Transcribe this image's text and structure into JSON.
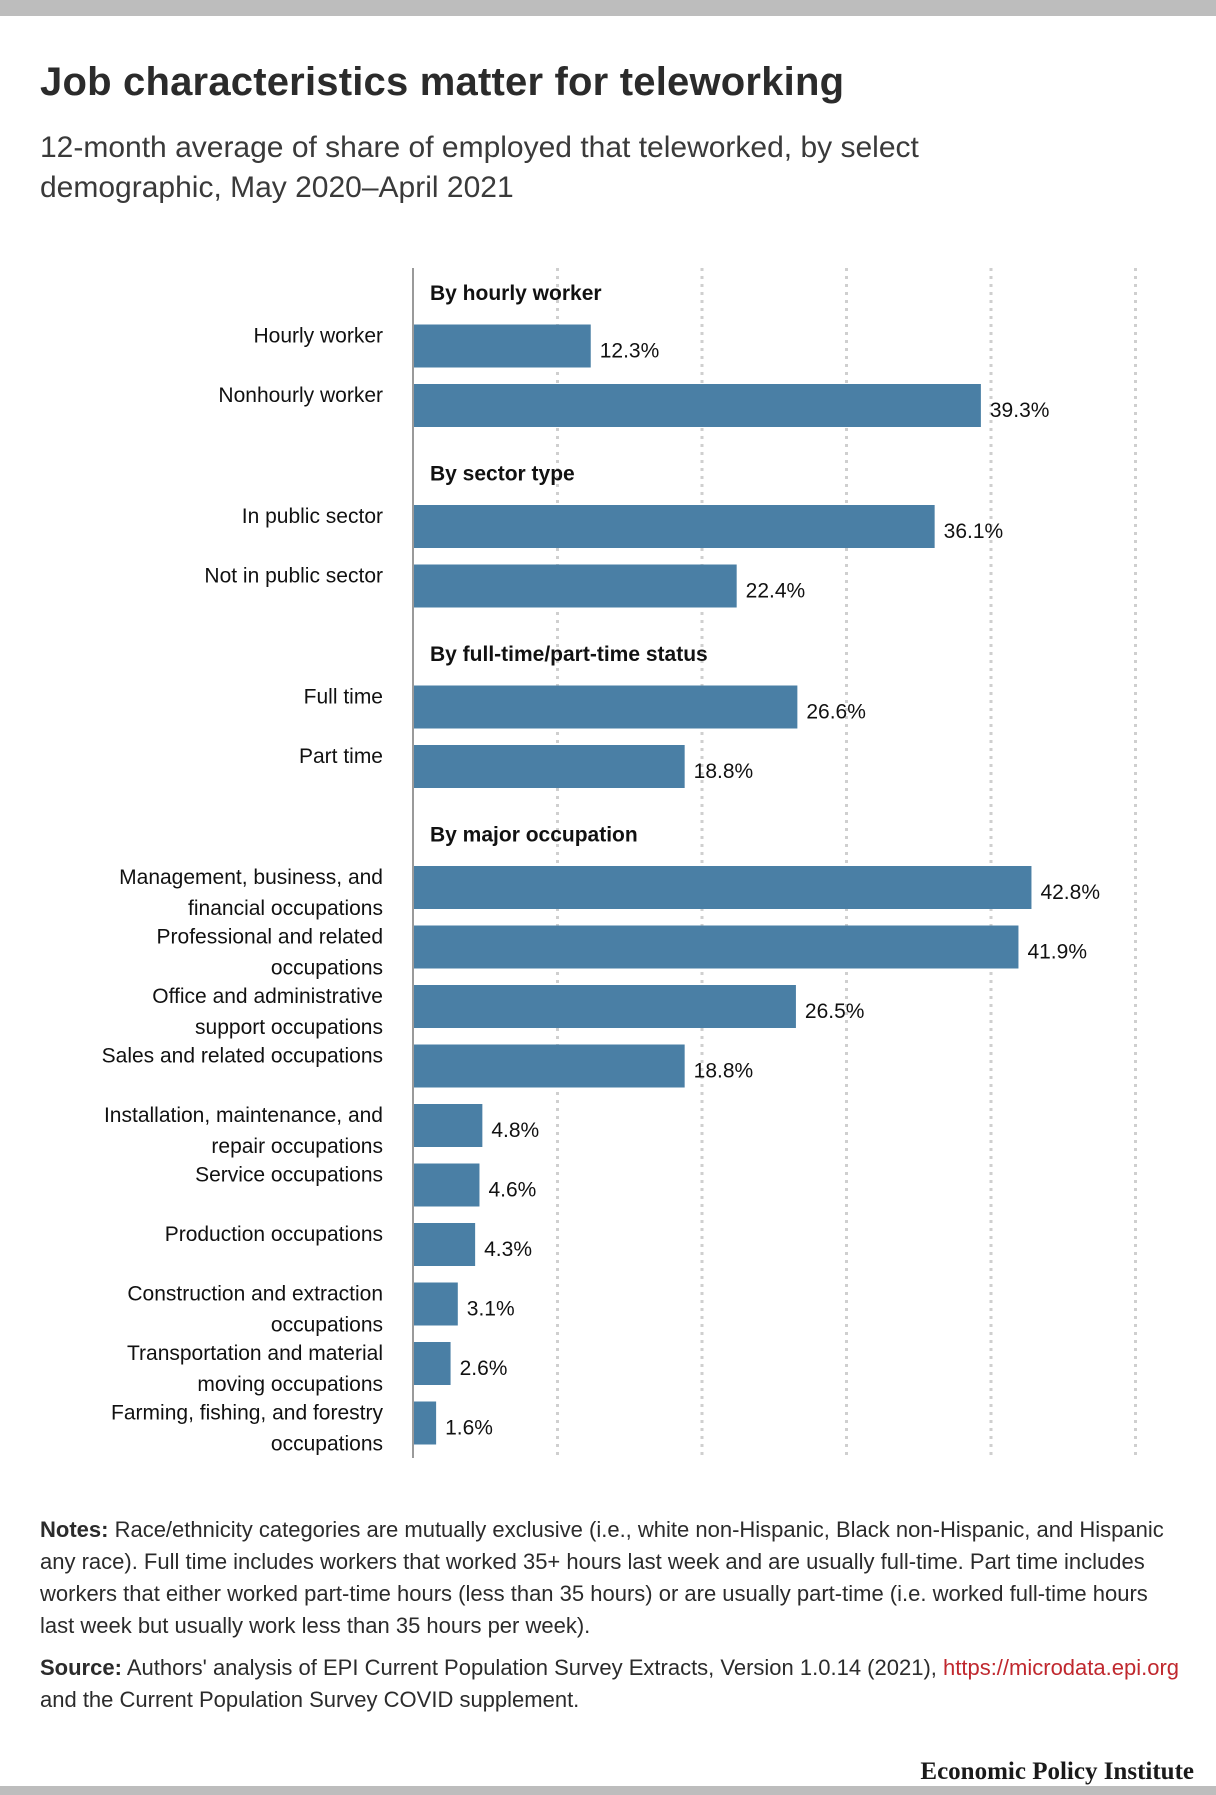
{
  "title": "Job characteristics matter for teleworking",
  "subtitle": "12-month average of share of employed that teleworked, by select demographic, May 2020–April 2021",
  "chart_data": {
    "type": "bar",
    "orientation": "horizontal",
    "bar_color": "#4a7fa5",
    "value_suffix": "%",
    "xlim": [
      0,
      50
    ],
    "grid": "vertical dotted",
    "groups": [
      {
        "label": "By hourly worker",
        "rows": [
          {
            "label": "Hourly worker",
            "value": 12.3,
            "value_label": "12.3%"
          },
          {
            "label": "Nonhourly worker",
            "value": 39.3,
            "value_label": "39.3%"
          }
        ]
      },
      {
        "label": "By sector type",
        "rows": [
          {
            "label": "In public sector",
            "value": 36.1,
            "value_label": "36.1%"
          },
          {
            "label": "Not in public sector",
            "value": 22.4,
            "value_label": "22.4%"
          }
        ]
      },
      {
        "label": "By full-time/part-time status",
        "rows": [
          {
            "label": "Full time",
            "value": 26.6,
            "value_label": "26.6%"
          },
          {
            "label": "Part time",
            "value": 18.8,
            "value_label": "18.8%"
          }
        ]
      },
      {
        "label": "By major occupation",
        "rows": [
          {
            "label": "Management, business, and financial occupations",
            "lines": [
              "Management, business, and",
              "financial occupations"
            ],
            "value": 42.8,
            "value_label": "42.8%"
          },
          {
            "label": "Professional and related occupations",
            "lines": [
              "Professional and related",
              "occupations"
            ],
            "value": 41.9,
            "value_label": "41.9%"
          },
          {
            "label": "Office and administrative support occupations",
            "lines": [
              "Office and administrative",
              "support occupations"
            ],
            "value": 26.5,
            "value_label": "26.5%"
          },
          {
            "label": "Sales and related occupations",
            "value": 18.8,
            "value_label": "18.8%"
          },
          {
            "label": "Installation, maintenance, and repair occupations",
            "lines": [
              "Installation, maintenance, and",
              "repair occupations"
            ],
            "value": 4.8,
            "value_label": "4.8%"
          },
          {
            "label": "Service occupations",
            "value": 4.6,
            "value_label": "4.6%"
          },
          {
            "label": "Production occupations",
            "value": 4.3,
            "value_label": "4.3%"
          },
          {
            "label": "Construction and extraction occupations",
            "lines": [
              "Construction and extraction",
              "occupations"
            ],
            "value": 3.1,
            "value_label": "3.1%"
          },
          {
            "label": "Transportation and material moving occupations",
            "lines": [
              "Transportation and material",
              "moving occupations"
            ],
            "value": 2.6,
            "value_label": "2.6%"
          },
          {
            "label": "Farming, fishing, and forestry occupations",
            "lines": [
              "Farming, fishing, and forestry",
              "occupations"
            ],
            "value": 1.6,
            "value_label": "1.6%"
          }
        ]
      }
    ]
  },
  "notes": {
    "lead": "Notes:",
    "text": " Race/ethnicity categories are mutually exclusive (i.e., white non-Hispanic, Black non-Hispanic, and Hispanic any race). Full time includes workers that worked 35+ hours last week and are usually full-time. Part time includes workers that either worked part-time hours (less than 35 hours) or are usually part-time (i.e. worked full-time hours last week but usually work less than 35 hours per week)."
  },
  "source": {
    "lead": "Source:",
    "text_before": " Authors' analysis of EPI Current Population Survey Extracts, Version 1.0.14 (2021), ",
    "link": "https://microdata.epi.org",
    "text_after": " and the Current Population Survey COVID supplement."
  },
  "brand": "Economic Policy Institute"
}
